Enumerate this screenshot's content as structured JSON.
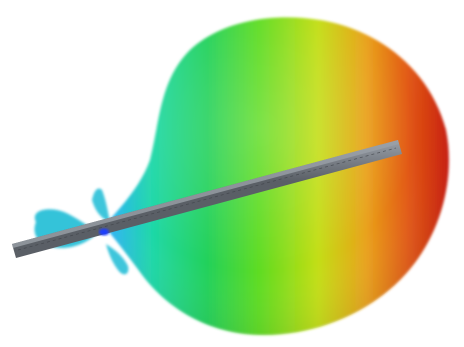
{
  "scene": {
    "subject": "3d-antenna-radiation-pattern",
    "background_color": "#ffffff",
    "lobe_gradient_colors": [
      "#2fb0ff",
      "#1fd8a8",
      "#23d15a",
      "#5fdc22",
      "#c3de14",
      "#e9a21b",
      "#e25a12",
      "#c81a10"
    ],
    "back_lobe_color": "#29c0d8",
    "rod_color": "#5a5f66",
    "rod_highlight_color": "#9aa0a8",
    "feed_point_color": "#1c3cff"
  }
}
